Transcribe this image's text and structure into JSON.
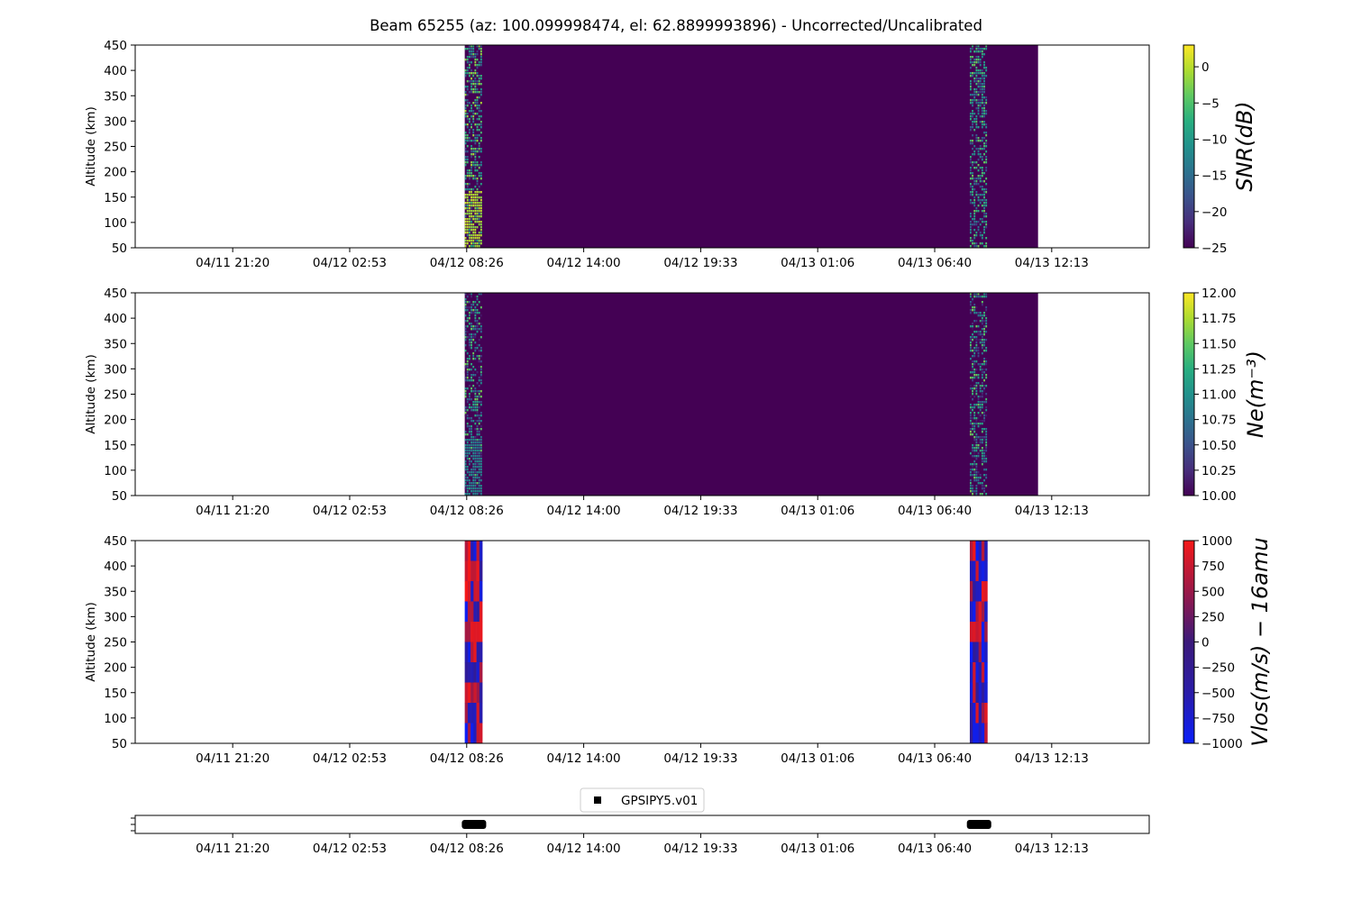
{
  "title": "Beam 65255 (az: 100.099998474, el: 62.8899993896) - Uncorrected/Uncalibrated",
  "colors": {
    "viridis_low": "#440154",
    "viridis_mid": "#21918c",
    "viridis_high": "#fde725",
    "vlos_low": "#0a1ef8",
    "vlos_mid": "#3b1a7a",
    "vlos_high": "#f51818"
  },
  "chart_data": [
    {
      "type": "heatmap",
      "name": "snr",
      "ylabel": "Altitude (km)",
      "colorbar_label": "SNR(dB)",
      "colormap": "viridis",
      "ylim": [
        50,
        450
      ],
      "yticks": [
        50,
        100,
        150,
        200,
        250,
        300,
        350,
        400,
        450
      ],
      "xlim_hours": [
        0,
        104
      ],
      "xticks": [
        {
          "hour": 10,
          "label": "04/11 21:20"
        },
        {
          "hour": 22,
          "label": "04/12 02:53"
        },
        {
          "hour": 34,
          "label": "04/12 08:26"
        },
        {
          "hour": 46,
          "label": "04/12 14:00"
        },
        {
          "hour": 58,
          "label": "04/12 19:33"
        },
        {
          "hour": 70,
          "label": "04/13 01:06"
        },
        {
          "hour": 82,
          "label": "04/13 06:40"
        },
        {
          "hour": 94,
          "label": "04/13 12:13"
        }
      ],
      "clim": [
        -25,
        3
      ],
      "cticks": [
        0,
        -5,
        -10,
        -15,
        -20,
        -25
      ],
      "background_value": -25,
      "data_span_hours": [
        33.8,
        92.6
      ],
      "active_bands": [
        {
          "start_hour": 33.8,
          "end_hour": 35.6,
          "noise_range": [
            -20,
            0
          ],
          "enhanced_below_km": 160,
          "enhanced_value": 1
        },
        {
          "start_hour": 85.6,
          "end_hour": 87.4,
          "noise_range": [
            -20,
            -3
          ],
          "enhanced_below_km": 0,
          "enhanced_value": -3
        }
      ]
    },
    {
      "type": "heatmap",
      "name": "ne",
      "ylabel": "Altitude (km)",
      "colorbar_label": "Ne(m⁻³)",
      "colormap": "viridis",
      "ylim": [
        50,
        450
      ],
      "yticks": [
        50,
        100,
        150,
        200,
        250,
        300,
        350,
        400,
        450
      ],
      "xlim_hours": [
        0,
        104
      ],
      "xticks": [
        {
          "hour": 10,
          "label": "04/11 21:20"
        },
        {
          "hour": 22,
          "label": "04/12 02:53"
        },
        {
          "hour": 34,
          "label": "04/12 08:26"
        },
        {
          "hour": 46,
          "label": "04/12 14:00"
        },
        {
          "hour": 58,
          "label": "04/12 19:33"
        },
        {
          "hour": 70,
          "label": "04/13 01:06"
        },
        {
          "hour": 82,
          "label": "04/13 06:40"
        },
        {
          "hour": 94,
          "label": "04/13 12:13"
        }
      ],
      "clim": [
        10,
        12
      ],
      "cticks": [
        12.0,
        11.75,
        11.5,
        11.25,
        11.0,
        10.75,
        10.5,
        10.25,
        10.0
      ],
      "background_value": 10,
      "data_span_hours": [
        33.8,
        92.6
      ],
      "active_bands": [
        {
          "start_hour": 33.8,
          "end_hour": 35.6,
          "noise_range": [
            10,
            11.6
          ],
          "enhanced_below_km": 160,
          "enhanced_value": 11.0
        },
        {
          "start_hour": 85.6,
          "end_hour": 87.4,
          "noise_range": [
            10,
            11.6
          ],
          "enhanced_below_km": 0,
          "enhanced_value": 10.5
        }
      ]
    },
    {
      "type": "heatmap",
      "name": "vlos",
      "ylabel": "Altitude (km)",
      "colorbar_label": "Vlos(m/s) − 16amu",
      "colormap": "bwr_dark",
      "ylim": [
        50,
        450
      ],
      "yticks": [
        50,
        100,
        150,
        200,
        250,
        300,
        350,
        400,
        450
      ],
      "xlim_hours": [
        0,
        104
      ],
      "xticks": [
        {
          "hour": 10,
          "label": "04/11 21:20"
        },
        {
          "hour": 22,
          "label": "04/12 02:53"
        },
        {
          "hour": 34,
          "label": "04/12 08:26"
        },
        {
          "hour": 46,
          "label": "04/12 14:00"
        },
        {
          "hour": 58,
          "label": "04/12 19:33"
        },
        {
          "hour": 70,
          "label": "04/13 01:06"
        },
        {
          "hour": 82,
          "label": "04/13 06:40"
        },
        {
          "hour": 94,
          "label": "04/13 12:13"
        }
      ],
      "clim": [
        -1000,
        1000
      ],
      "cticks": [
        1000,
        750,
        500,
        250,
        0,
        -250,
        -500,
        -750,
        -1000
      ],
      "background_value": null,
      "data_span_hours": null,
      "active_bands": [
        {
          "start_hour": 33.8,
          "end_hour": 35.6,
          "noise_range": [
            -1000,
            1000
          ],
          "enhanced_below_km": 0,
          "enhanced_value": 0
        },
        {
          "start_hour": 85.6,
          "end_hour": 87.4,
          "noise_range": [
            -1000,
            1000
          ],
          "enhanced_below_km": 0,
          "enhanced_value": 0
        }
      ]
    },
    {
      "type": "scatter",
      "name": "instrument-timeline",
      "legend": [
        "GPSIPY5.v01"
      ],
      "xlim_hours": [
        0,
        104
      ],
      "xticks": [
        {
          "hour": 10,
          "label": "04/11 21:20"
        },
        {
          "hour": 22,
          "label": "04/12 02:53"
        },
        {
          "hour": 34,
          "label": "04/12 08:26"
        },
        {
          "hour": 46,
          "label": "04/12 14:00"
        },
        {
          "hour": 58,
          "label": "04/12 19:33"
        },
        {
          "hour": 70,
          "label": "04/13 01:06"
        },
        {
          "hour": 82,
          "label": "04/13 06:40"
        },
        {
          "hour": 94,
          "label": "04/13 12:13"
        }
      ],
      "segments": [
        {
          "start_hour": 33.5,
          "end_hour": 36.0
        },
        {
          "start_hour": 85.3,
          "end_hour": 87.8
        }
      ]
    }
  ]
}
